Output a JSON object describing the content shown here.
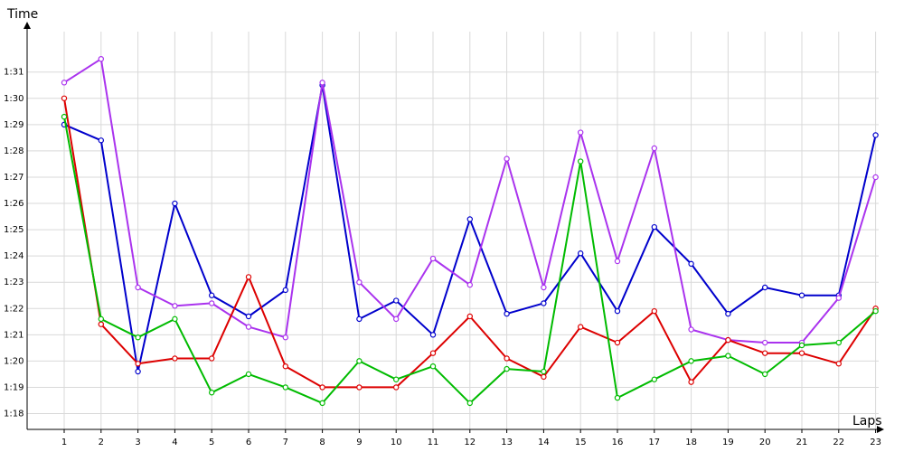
{
  "chart_data": {
    "type": "line",
    "title": "",
    "xlabel": "Laps",
    "ylabel": "Time",
    "categories": [
      "1",
      "2",
      "3",
      "4",
      "5",
      "6",
      "7",
      "8",
      "9",
      "10",
      "11",
      "12",
      "13",
      "14",
      "15",
      "16",
      "17",
      "18",
      "19",
      "20",
      "21",
      "22",
      "23"
    ],
    "y_tick_labels": [
      "1:18",
      "1:19",
      "1:20",
      "1:21",
      "1:22",
      "1:23",
      "1:24",
      "1:25",
      "1:26",
      "1:27",
      "1:28",
      "1:29",
      "1:30",
      "1:31"
    ],
    "y_ticks_seconds": [
      78,
      79,
      80,
      81,
      82,
      83,
      84,
      85,
      86,
      87,
      88,
      89,
      90,
      91
    ],
    "ylim_seconds": [
      76.9,
      92.7
    ],
    "grid": true,
    "legend": "none",
    "series": [
      {
        "color": "#0000cc",
        "values_seconds": [
          89.0,
          88.4,
          79.6,
          86.0,
          82.5,
          81.7,
          82.7,
          90.5,
          81.6,
          82.3,
          81.0,
          85.4,
          81.8,
          82.2,
          84.1,
          81.9,
          85.1,
          83.7,
          81.8,
          82.8,
          82.5,
          82.5,
          88.6
        ]
      },
      {
        "color": "#aa33ee",
        "values_seconds": [
          90.6,
          91.5,
          82.8,
          82.1,
          82.2,
          81.3,
          80.9,
          90.6,
          83.0,
          81.6,
          83.9,
          82.9,
          87.7,
          82.8,
          88.7,
          83.8,
          88.1,
          81.2,
          80.8,
          80.7,
          80.7,
          82.4,
          87.0
        ]
      },
      {
        "color": "#dd0000",
        "values_seconds": [
          90.0,
          81.4,
          79.9,
          80.1,
          80.1,
          83.2,
          79.8,
          79.0,
          79.0,
          79.0,
          80.3,
          81.7,
          80.1,
          79.4,
          81.3,
          80.7,
          81.9,
          79.2,
          80.8,
          80.3,
          80.3,
          79.9,
          82.0
        ]
      },
      {
        "color": "#00bb00",
        "values_seconds": [
          89.3,
          81.6,
          80.9,
          81.6,
          78.8,
          79.5,
          79.0,
          78.4,
          80.0,
          79.3,
          79.8,
          78.4,
          79.7,
          79.6,
          87.6,
          78.6,
          79.3,
          80.0,
          80.2,
          79.5,
          80.6,
          80.7,
          81.9
        ]
      }
    ]
  }
}
